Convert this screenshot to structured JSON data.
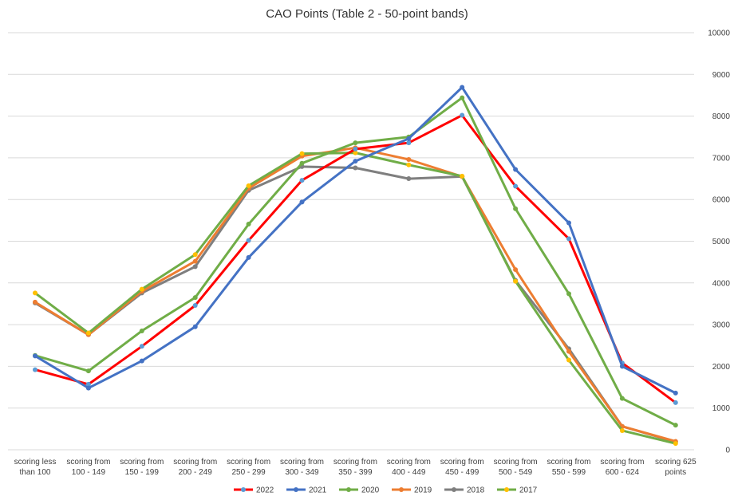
{
  "chart_data": {
    "type": "line",
    "title": "CAO Points (Table 2 - 50-point bands)",
    "categories": [
      [
        "scoring less",
        "than 100"
      ],
      [
        "scoring from",
        "100 - 149"
      ],
      [
        "scoring from",
        "150 - 199"
      ],
      [
        "scoring from",
        "200 - 249"
      ],
      [
        "scoring from",
        "250 - 299"
      ],
      [
        "scoring from",
        "300 - 349"
      ],
      [
        "scoring from",
        "350 - 399"
      ],
      [
        "scoring from",
        "400 - 449"
      ],
      [
        "scoring from",
        "450 - 499"
      ],
      [
        "scoring from",
        "500 - 549"
      ],
      [
        "scoring from",
        "550 - 599"
      ],
      [
        "scoring from",
        "600 - 624"
      ],
      [
        "scoring 625",
        "points"
      ]
    ],
    "y_ticks": [
      "0",
      "1000",
      "2000",
      "3000",
      "4000",
      "5000",
      "6000",
      "7000",
      "8000",
      "9000",
      "10000"
    ],
    "ylim": [
      0,
      10000
    ],
    "y_axis_side": "right",
    "grid": true,
    "legend_position": "bottom",
    "series": [
      {
        "name": "2018",
        "line_color": "#7f7f7f",
        "marker_color": "#7f7f7f",
        "values": [
          3520,
          2760,
          3760,
          4390,
          6220,
          6790,
          6760,
          6500,
          6550,
          4060,
          2420,
          560,
          190
        ]
      },
      {
        "name": "2019",
        "line_color": "#ed7d31",
        "marker_color": "#ed7d31",
        "values": [
          3540,
          2760,
          3800,
          4520,
          6270,
          7040,
          7240,
          6960,
          6550,
          4320,
          2360,
          560,
          200
        ]
      },
      {
        "name": "2017",
        "line_color": "#70ad47",
        "marker_color": "#ffc000",
        "values": [
          3760,
          2800,
          3850,
          4680,
          6330,
          7100,
          7120,
          6830,
          6560,
          4040,
          2150,
          460,
          150
        ]
      },
      {
        "name": "2022",
        "line_color": "#ff0000",
        "marker_color": "#5b9bd5",
        "values": [
          1920,
          1570,
          2480,
          3460,
          5020,
          6460,
          7210,
          7360,
          8020,
          6320,
          5060,
          2080,
          1130
        ]
      },
      {
        "name": "2020",
        "line_color": "#70ad47",
        "marker_color": "#70ad47",
        "values": [
          2260,
          1890,
          2850,
          3650,
          5410,
          6870,
          7360,
          7500,
          8440,
          5780,
          3740,
          1230,
          590
        ]
      },
      {
        "name": "2021",
        "line_color": "#4472c4",
        "marker_color": "#4472c4",
        "values": [
          2250,
          1480,
          2130,
          2950,
          4610,
          5940,
          6920,
          7460,
          8690,
          6720,
          5440,
          2000,
          1360
        ]
      }
    ],
    "legend_order": [
      "2022",
      "2021",
      "2020",
      "2019",
      "2018",
      "2017"
    ]
  }
}
